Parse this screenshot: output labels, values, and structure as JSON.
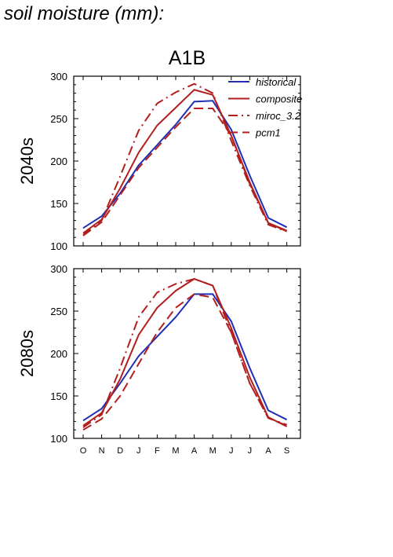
{
  "title": "soil moisture (mm):",
  "colors": {
    "historical": "#1f2fb4",
    "scenario": "#b21e1e"
  },
  "chart_data": [
    {
      "type": "line",
      "title": "A1B",
      "ylabel": "2040s",
      "xlabel": "",
      "categories": [
        "O",
        "N",
        "D",
        "J",
        "F",
        "M",
        "A",
        "M",
        "J",
        "J",
        "A",
        "S"
      ],
      "ylim": [
        100,
        300
      ],
      "yticks": [
        100,
        150,
        200,
        250,
        300
      ],
      "grid": false,
      "legend_position": "top-right",
      "series": [
        {
          "name": "historical",
          "color": "#1f2fb4",
          "dash": "solid",
          "values": [
            121,
            135,
            162,
            195,
            219,
            243,
            270,
            271,
            237,
            183,
            133,
            122
          ]
        },
        {
          "name": "composite",
          "color": "#b21e1e",
          "dash": "solid",
          "values": [
            115,
            131,
            168,
            210,
            242,
            263,
            284,
            278,
            230,
            175,
            127,
            118
          ]
        },
        {
          "name": "miroc_3.2",
          "color": "#b21e1e",
          "dash": "dashdot",
          "values": [
            113,
            130,
            182,
            236,
            268,
            281,
            291,
            280,
            224,
            171,
            125,
            117
          ]
        },
        {
          "name": "pcm1",
          "color": "#b21e1e",
          "dash": "dashed",
          "values": [
            112,
            128,
            160,
            192,
            216,
            240,
            262,
            262,
            230,
            173,
            127,
            117
          ]
        }
      ]
    },
    {
      "type": "line",
      "title": "",
      "ylabel": "2080s",
      "xlabel": "",
      "categories": [
        "O",
        "N",
        "D",
        "J",
        "F",
        "M",
        "A",
        "M",
        "J",
        "J",
        "A",
        "S"
      ],
      "ylim": [
        100,
        300
      ],
      "yticks": [
        100,
        150,
        200,
        250,
        300
      ],
      "grid": false,
      "series": [
        {
          "name": "historical",
          "color": "#1f2fb4",
          "dash": "solid",
          "values": [
            121,
            135,
            165,
            197,
            220,
            243,
            270,
            270,
            238,
            183,
            133,
            122
          ]
        },
        {
          "name": "composite",
          "color": "#b21e1e",
          "dash": "solid",
          "values": [
            115,
            130,
            170,
            222,
            254,
            274,
            288,
            280,
            230,
            172,
            125,
            114
          ]
        },
        {
          "name": "miroc_3.2",
          "color": "#b21e1e",
          "dash": "dashdot",
          "values": [
            113,
            128,
            183,
            243,
            272,
            282,
            288,
            280,
            225,
            165,
            124,
            116
          ]
        },
        {
          "name": "pcm1",
          "color": "#b21e1e",
          "dash": "dashed",
          "values": [
            110,
            123,
            150,
            188,
            225,
            254,
            270,
            266,
            225,
            165,
            124,
            115
          ]
        }
      ]
    }
  ]
}
